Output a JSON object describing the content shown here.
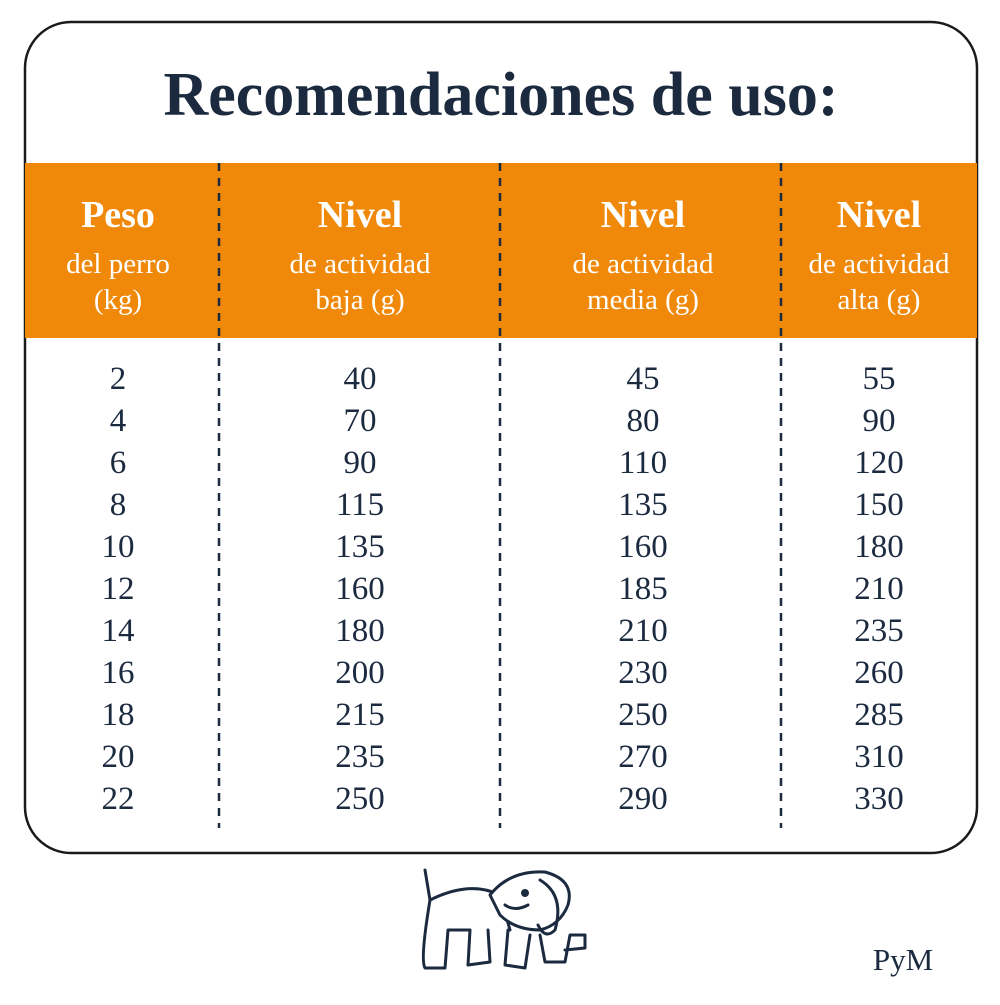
{
  "title": "Recomendaciones de uso:",
  "table": {
    "columns": [
      {
        "head": "Peso",
        "lines": [
          "del perro",
          "(kg)"
        ]
      },
      {
        "head": "Nivel",
        "lines": [
          "de actividad",
          "baja (g)"
        ]
      },
      {
        "head": "Nivel",
        "lines": [
          "de actividad",
          "media (g)"
        ]
      },
      {
        "head": "Nivel",
        "lines": [
          "de actividad",
          "alta (g)"
        ]
      }
    ],
    "rows": [
      [
        2,
        40,
        45,
        55
      ],
      [
        4,
        70,
        80,
        90
      ],
      [
        6,
        90,
        110,
        120
      ],
      [
        8,
        115,
        135,
        150
      ],
      [
        10,
        135,
        160,
        180
      ],
      [
        12,
        160,
        185,
        210
      ],
      [
        14,
        180,
        210,
        235
      ],
      [
        16,
        200,
        230,
        260
      ],
      [
        18,
        215,
        250,
        285
      ],
      [
        20,
        235,
        270,
        310
      ],
      [
        22,
        250,
        290,
        330
      ]
    ]
  },
  "brand": "PyM"
}
